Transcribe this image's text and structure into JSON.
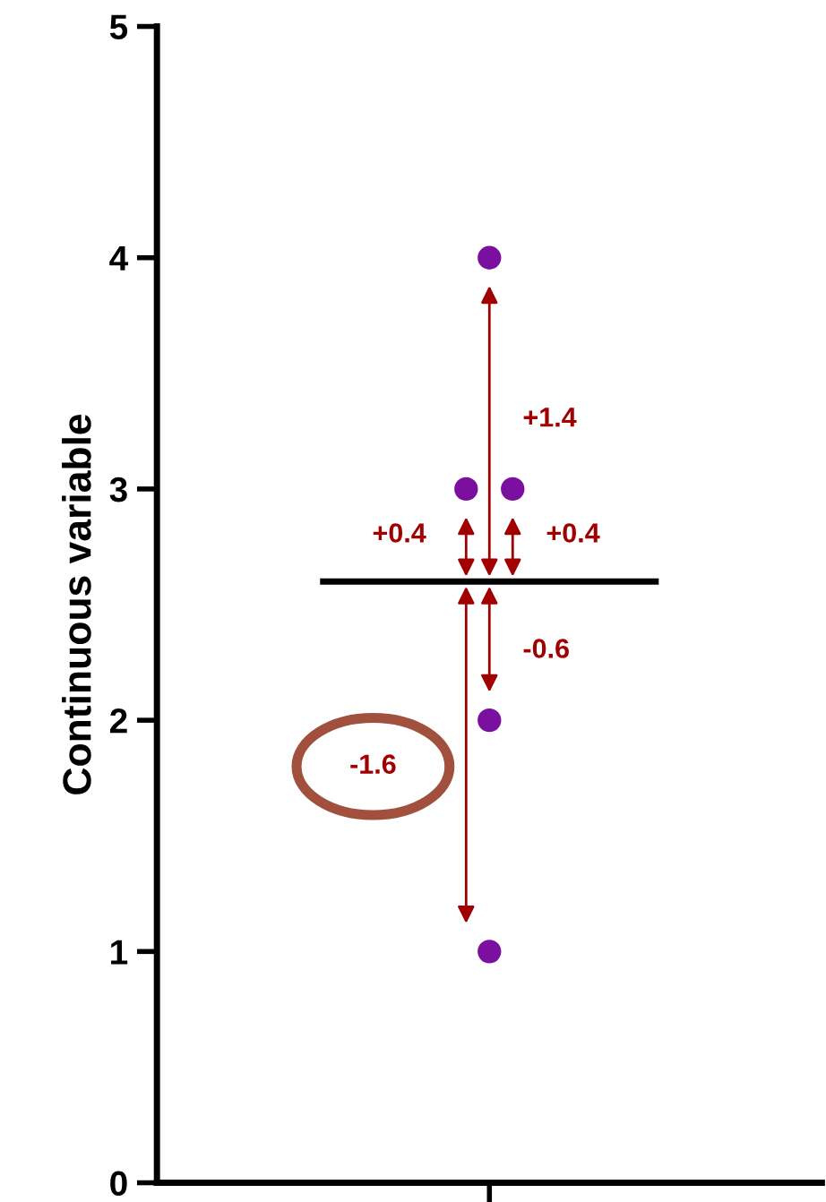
{
  "chart_data": {
    "type": "scatter",
    "ylabel": "Continuous variable",
    "categories": [
      null
    ],
    "ylim": [
      0,
      5
    ],
    "yticks": [
      0,
      1,
      2,
      3,
      4,
      5
    ],
    "grid": false,
    "tick_labels": "y",
    "marker": "circle",
    "series": [
      {
        "color": "#7b0fa0",
        "values": [
          4
        ]
      },
      {
        "color": "#7b0fa0",
        "values": [
          3
        ]
      },
      {
        "color": "#7b0fa0",
        "values": [
          3
        ]
      },
      {
        "color": "#7b0fa0",
        "values": [
          2
        ]
      },
      {
        "color": "#7b0fa0",
        "values": [
          1
        ]
      }
    ],
    "ref_lines": [
      {
        "axis": "y",
        "value": 2.6,
        "color": "#000000"
      }
    ],
    "annotations": [
      "+1.4",
      "+0.4",
      "+0.4",
      "-0.6",
      "-1.6"
    ]
  }
}
